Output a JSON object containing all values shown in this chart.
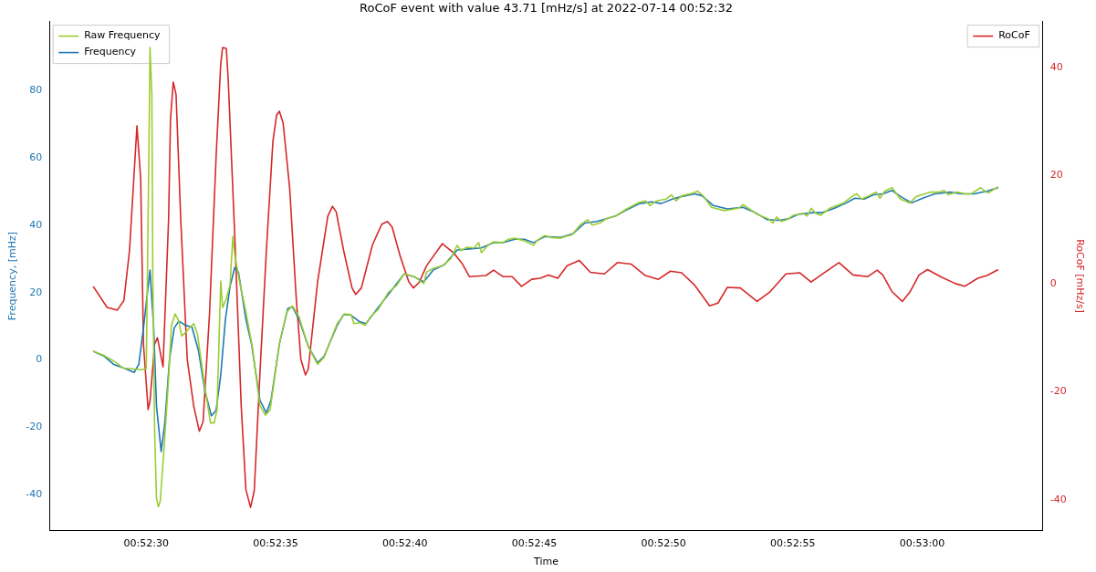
{
  "chart_data": {
    "type": "line",
    "title": "RoCoF event with value 43.71 [mHz/s] at 2022-07-14 00:52:32",
    "xlabel": "Time",
    "ylabel": "Frequency, [mHz]",
    "y2label": "RoCoF [mHz/s]",
    "xlim": [
      0.87396,
      0.88463
    ],
    "xticks": [
      {
        "value": 0.875,
        "label": "00:52:30"
      },
      {
        "value": 0.876389,
        "label": "00:52:35"
      },
      {
        "value": 0.877778,
        "label": "00:52:40"
      },
      {
        "value": 0.879167,
        "label": "00:52:45"
      },
      {
        "value": 0.880556,
        "label": "00:52:50"
      },
      {
        "value": 0.881944,
        "label": "00:52:55"
      },
      {
        "value": 0.883333,
        "label": "00:53:00"
      }
    ],
    "ylim": [
      -50.7,
      100.6
    ],
    "yticks": [
      -40,
      -20,
      0,
      20,
      40,
      60,
      80
    ],
    "y2lim": [
      -45.7,
      48.5
    ],
    "y2ticks": [
      -40,
      -20,
      0,
      20,
      40
    ],
    "legend": "top left",
    "grid": false,
    "marker": "none",
    "line_style": "solid",
    "series": [
      {
        "name": "Raw Frequency",
        "color": "#9acd32",
        "x": [
          0.87443,
          0.87455,
          0.87465,
          0.87475,
          0.87484,
          0.87494,
          0.875,
          0.87503,
          0.87504,
          0.87506,
          0.87507,
          0.87509,
          0.87511,
          0.87513,
          0.87515,
          0.87519,
          0.87524,
          0.87527,
          0.87531,
          0.87535,
          0.87538,
          0.87543,
          0.87547,
          0.87551,
          0.87555,
          0.87563,
          0.87569,
          0.87573,
          0.87576,
          0.8758,
          0.87582,
          0.87586,
          0.8759,
          0.87593,
          0.87595,
          0.876,
          0.87607,
          0.87614,
          0.87622,
          0.87628,
          0.87633,
          0.87643,
          0.87651,
          0.87657,
          0.87664,
          0.87674,
          0.87684,
          0.87691,
          0.87705,
          0.87713,
          0.8772,
          0.87723,
          0.87729,
          0.87735,
          0.87741,
          0.87749,
          0.8776,
          0.87769,
          0.87777,
          0.87788,
          0.87798,
          0.87801,
          0.87808,
          0.87818,
          0.87827,
          0.87834,
          0.87838,
          0.87844,
          0.87852,
          0.87857,
          0.8786,
          0.87867,
          0.87873,
          0.87883,
          0.87889,
          0.87896,
          0.87906,
          0.87916,
          0.8792,
          0.87928,
          0.87935,
          0.87945,
          0.8795,
          0.87957,
          0.87967,
          0.87974,
          0.87979,
          0.87987,
          0.87994,
          0.88004,
          0.88016,
          0.88028,
          0.88036,
          0.88041,
          0.88048,
          0.88058,
          0.88064,
          0.88069,
          0.88075,
          0.88087,
          0.88092,
          0.88098,
          0.88107,
          0.88121,
          0.88136,
          0.88141,
          0.88156,
          0.88168,
          0.88173,
          0.88177,
          0.88182,
          0.88188,
          0.88195,
          0.88205,
          0.8821,
          0.88214,
          0.88219,
          0.88224,
          0.88234,
          0.88249,
          0.88259,
          0.88263,
          0.88268,
          0.88276,
          0.88284,
          0.88288,
          0.88293,
          0.88301,
          0.8831,
          0.8832,
          0.88327,
          0.88342,
          0.88352,
          0.88357,
          0.88361,
          0.88371,
          0.88379,
          0.88386,
          0.88396,
          0.88404,
          0.88415
        ],
        "values": [
          2.6,
          1.3,
          -0.3,
          -2.4,
          -2.6,
          -2.9,
          -2.6,
          65.7,
          92.9,
          78.9,
          26.1,
          -21.4,
          -41.2,
          -43.6,
          -42.0,
          -26.7,
          -5.5,
          10.3,
          13.7,
          11.6,
          7.1,
          8.4,
          9.8,
          10.8,
          7.7,
          -8.2,
          -18.7,
          -18.7,
          -14.8,
          23.5,
          15.6,
          18.2,
          22.4,
          36.7,
          31.4,
          23.5,
          14.3,
          3.7,
          -13.5,
          -16.4,
          -14.8,
          4.8,
          14.3,
          16.1,
          12.9,
          4.0,
          -1.3,
          0.8,
          10.8,
          13.7,
          13.5,
          10.8,
          11.1,
          10.3,
          12.9,
          15.0,
          20.1,
          22.2,
          25.6,
          24.8,
          22.7,
          26.1,
          27.2,
          28.0,
          30.1,
          34.1,
          32.5,
          33.5,
          33.3,
          34.9,
          31.9,
          34.1,
          35.1,
          34.9,
          35.9,
          36.2,
          35.4,
          34.1,
          35.6,
          37.0,
          36.4,
          36.2,
          36.7,
          37.2,
          40.4,
          41.7,
          40.1,
          40.7,
          42.0,
          42.8,
          44.9,
          46.7,
          47.3,
          45.9,
          47.3,
          47.8,
          49.1,
          47.3,
          48.8,
          49.6,
          50.2,
          48.8,
          45.4,
          44.4,
          45.1,
          46.2,
          43.3,
          42.0,
          40.7,
          42.5,
          41.2,
          41.7,
          43.0,
          43.6,
          42.8,
          45.1,
          43.6,
          43.0,
          45.1,
          46.7,
          48.8,
          49.4,
          47.8,
          48.8,
          49.9,
          48.1,
          50.2,
          51.2,
          47.8,
          46.7,
          48.6,
          49.9,
          49.9,
          50.4,
          49.1,
          49.9,
          49.4,
          49.4,
          51.2,
          49.6,
          51.5
        ]
      },
      {
        "name": "Frequency",
        "color": "#1f77b4",
        "x": [
          0.87443,
          0.87455,
          0.87465,
          0.87478,
          0.87487,
          0.87492,
          0.87497,
          0.87504,
          0.87508,
          0.87511,
          0.87516,
          0.8752,
          0.87525,
          0.8753,
          0.87535,
          0.87542,
          0.87549,
          0.87556,
          0.87563,
          0.8757,
          0.87575,
          0.8758,
          0.87585,
          0.8759,
          0.87595,
          0.87599,
          0.87607,
          0.87613,
          0.87622,
          0.87629,
          0.87634,
          0.87643,
          0.87652,
          0.87657,
          0.87664,
          0.87674,
          0.87684,
          0.87691,
          0.87705,
          0.87712,
          0.87719,
          0.87729,
          0.87736,
          0.87746,
          0.8776,
          0.87777,
          0.87787,
          0.87798,
          0.87808,
          0.8782,
          0.87834,
          0.87847,
          0.8786,
          0.87873,
          0.87883,
          0.87896,
          0.87906,
          0.87916,
          0.87928,
          0.87945,
          0.87958,
          0.87971,
          0.87984,
          0.88004,
          0.88016,
          0.8803,
          0.88043,
          0.88053,
          0.88065,
          0.88075,
          0.88089,
          0.88097,
          0.88109,
          0.88124,
          0.88141,
          0.88154,
          0.88167,
          0.8818,
          0.8819,
          0.882,
          0.88216,
          0.88226,
          0.88239,
          0.88252,
          0.88261,
          0.88271,
          0.88281,
          0.88291,
          0.88301,
          0.8831,
          0.88322,
          0.88334,
          0.88347,
          0.88363,
          0.88376,
          0.88389,
          0.88403,
          0.88415
        ],
        "values": [
          2.6,
          1.1,
          -1.3,
          -2.6,
          -3.7,
          -1.3,
          9.5,
          26.7,
          9.5,
          -13.7,
          -27.2,
          -18.5,
          0.3,
          9.5,
          11.6,
          10.3,
          9.8,
          2.9,
          -9.2,
          -16.6,
          -15.0,
          -4.5,
          12.1,
          21.9,
          27.5,
          26.1,
          12.1,
          4.8,
          -11.9,
          -15.8,
          -11.9,
          4.8,
          15.3,
          15.8,
          12.1,
          4.0,
          -0.8,
          1.1,
          10.3,
          13.5,
          13.5,
          11.4,
          10.8,
          14.5,
          19.5,
          25.6,
          24.8,
          23.2,
          26.7,
          28.3,
          32.7,
          33.0,
          33.3,
          34.9,
          34.9,
          35.9,
          35.9,
          34.9,
          36.7,
          36.4,
          37.5,
          40.7,
          41.2,
          42.8,
          44.6,
          46.5,
          47.0,
          46.5,
          47.8,
          48.6,
          49.4,
          48.8,
          45.9,
          44.9,
          45.4,
          43.8,
          41.7,
          41.5,
          42.0,
          43.3,
          43.8,
          43.8,
          45.1,
          46.7,
          48.1,
          47.8,
          49.1,
          49.4,
          50.4,
          48.6,
          46.7,
          48.1,
          49.4,
          49.9,
          49.4,
          49.4,
          50.2,
          51.2
        ]
      },
      {
        "name": "RoCoF",
        "color": "#d62728",
        "axis": "y2",
        "x": [
          0.87443,
          0.87458,
          0.87469,
          0.87476,
          0.87482,
          0.8749,
          0.87494,
          0.87497,
          0.87502,
          0.87504,
          0.87509,
          0.87512,
          0.87518,
          0.87524,
          0.87526,
          0.87529,
          0.87532,
          0.87537,
          0.87544,
          0.87551,
          0.87557,
          0.87561,
          0.87568,
          0.87575,
          0.8758,
          0.87582,
          0.87586,
          0.87588,
          0.87595,
          0.87602,
          0.87607,
          0.87612,
          0.87616,
          0.87622,
          0.87629,
          0.87636,
          0.8764,
          0.87643,
          0.87647,
          0.87654,
          0.87661,
          0.87666,
          0.87671,
          0.87674,
          0.87684,
          0.87695,
          0.877,
          0.87704,
          0.87712,
          0.87721,
          0.87725,
          0.87731,
          0.87743,
          0.87753,
          0.87759,
          0.87764,
          0.87773,
          0.87782,
          0.87787,
          0.87793,
          0.87801,
          0.87818,
          0.8783,
          0.87839,
          0.87847,
          0.87865,
          0.87873,
          0.87883,
          0.87893,
          0.87903,
          0.87914,
          0.87923,
          0.87932,
          0.87942,
          0.87952,
          0.87965,
          0.87977,
          0.87992,
          0.88006,
          0.88021,
          0.88036,
          0.8805,
          0.88063,
          0.88075,
          0.88089,
          0.88105,
          0.88114,
          0.88124,
          0.88138,
          0.88156,
          0.8817,
          0.88187,
          0.88202,
          0.88214,
          0.88229,
          0.88244,
          0.88259,
          0.88275,
          0.88285,
          0.88291,
          0.88301,
          0.88312,
          0.8832,
          0.8833,
          0.88339,
          0.88354,
          0.88369,
          0.88379,
          0.88393,
          0.88403,
          0.88415
        ],
        "values": [
          -0.5,
          -4.4,
          -4.9,
          -3.1,
          6.1,
          29.2,
          19.4,
          -11.2,
          -23.3,
          -21.8,
          -11.2,
          -10.0,
          -15.4,
          12.0,
          30.4,
          37.3,
          35.0,
          12.0,
          -14.0,
          -22.7,
          -27.3,
          -25.6,
          -5.4,
          23.5,
          40.7,
          43.7,
          43.5,
          37.8,
          9.0,
          -22.7,
          -38.1,
          -41.4,
          -38.3,
          -16.9,
          6.1,
          26.3,
          31.2,
          31.9,
          29.7,
          17.7,
          -2.5,
          -14.0,
          -16.9,
          -15.8,
          0.3,
          12.5,
          14.3,
          13.3,
          6.1,
          -0.8,
          -2.0,
          -0.8,
          7.2,
          11.0,
          11.5,
          10.5,
          4.9,
          0.3,
          -0.8,
          0.2,
          3.3,
          7.4,
          5.7,
          3.8,
          1.3,
          1.5,
          2.5,
          1.3,
          1.3,
          -0.5,
          0.8,
          1.0,
          1.6,
          1.0,
          3.3,
          4.3,
          2.1,
          1.8,
          3.9,
          3.6,
          1.5,
          0.8,
          2.3,
          2.0,
          -0.3,
          -4.1,
          -3.6,
          -0.7,
          -0.8,
          -3.3,
          -1.5,
          1.8,
          2.0,
          0.3,
          2.1,
          3.9,
          1.6,
          1.3,
          2.5,
          1.6,
          -1.5,
          -3.3,
          -1.6,
          1.6,
          2.6,
          1.2,
          0.0,
          -0.5,
          1.0,
          1.5,
          2.6
        ]
      }
    ]
  }
}
